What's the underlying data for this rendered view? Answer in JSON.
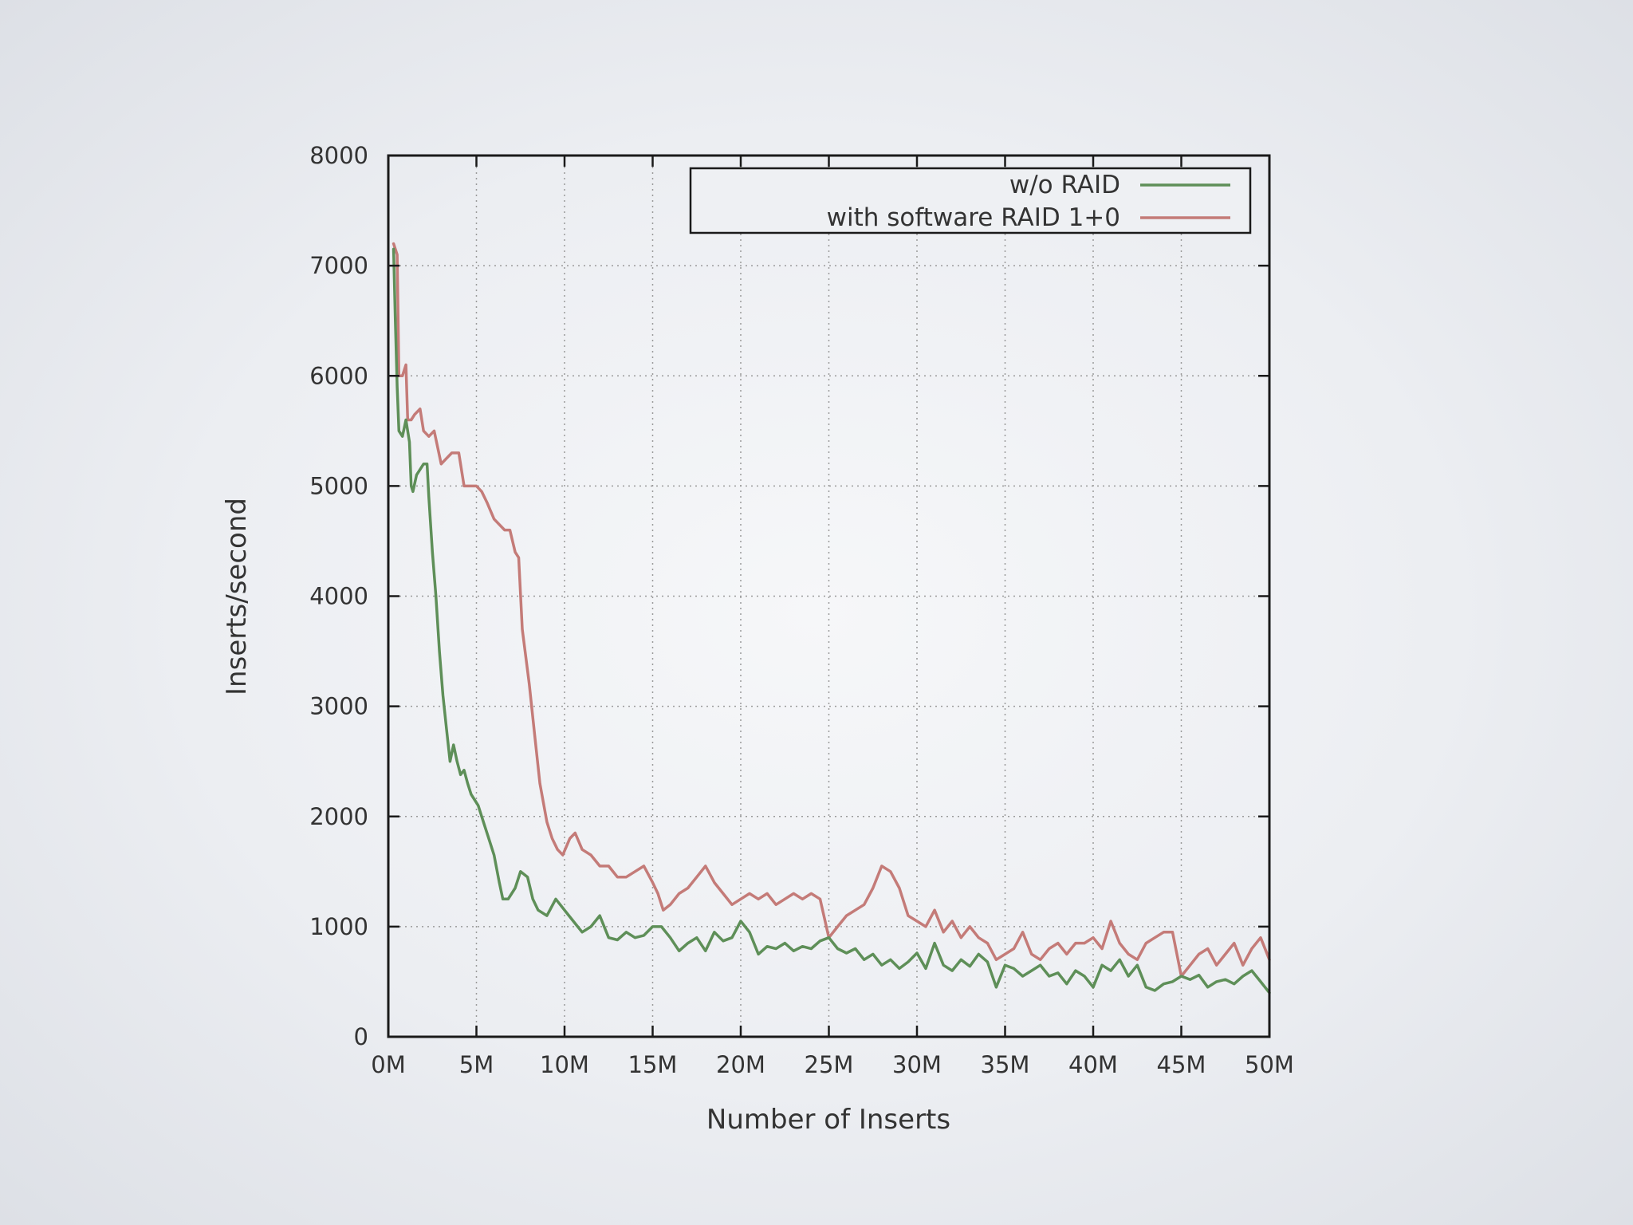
{
  "chart_data": {
    "type": "line",
    "xlabel": "Number of Inserts",
    "ylabel": "Inserts/second",
    "xlim": [
      0,
      50
    ],
    "ylim": [
      0,
      8000
    ],
    "x_ticks": [
      {
        "value": 0,
        "label": "0M"
      },
      {
        "value": 5,
        "label": "5M"
      },
      {
        "value": 10,
        "label": "10M"
      },
      {
        "value": 15,
        "label": "15M"
      },
      {
        "value": 20,
        "label": "20M"
      },
      {
        "value": 25,
        "label": "25M"
      },
      {
        "value": 30,
        "label": "30M"
      },
      {
        "value": 35,
        "label": "35M"
      },
      {
        "value": 40,
        "label": "40M"
      },
      {
        "value": 45,
        "label": "45M"
      },
      {
        "value": 50,
        "label": "50M"
      }
    ],
    "y_ticks": [
      {
        "value": 0,
        "label": "0"
      },
      {
        "value": 1000,
        "label": "1000"
      },
      {
        "value": 2000,
        "label": "2000"
      },
      {
        "value": 3000,
        "label": "3000"
      },
      {
        "value": 4000,
        "label": "4000"
      },
      {
        "value": 5000,
        "label": "5000"
      },
      {
        "value": 6000,
        "label": "6000"
      },
      {
        "value": 7000,
        "label": "7000"
      },
      {
        "value": 8000,
        "label": "8000"
      }
    ],
    "grid": true,
    "legend_position": "top-right",
    "series": [
      {
        "name": "w/o RAID",
        "color": "#5e8f58",
        "points": [
          [
            0.3,
            7150
          ],
          [
            0.4,
            6500
          ],
          [
            0.5,
            5900
          ],
          [
            0.6,
            5500
          ],
          [
            0.8,
            5450
          ],
          [
            1.0,
            5600
          ],
          [
            1.2,
            5400
          ],
          [
            1.3,
            5000
          ],
          [
            1.4,
            4950
          ],
          [
            1.6,
            5100
          ],
          [
            1.8,
            5150
          ],
          [
            2.0,
            5200
          ],
          [
            2.2,
            5200
          ],
          [
            2.3,
            4900
          ],
          [
            2.5,
            4400
          ],
          [
            2.7,
            4000
          ],
          [
            2.9,
            3500
          ],
          [
            3.1,
            3100
          ],
          [
            3.3,
            2800
          ],
          [
            3.5,
            2500
          ],
          [
            3.7,
            2650
          ],
          [
            3.9,
            2500
          ],
          [
            4.1,
            2380
          ],
          [
            4.3,
            2420
          ],
          [
            4.5,
            2300
          ],
          [
            4.7,
            2200
          ],
          [
            4.9,
            2150
          ],
          [
            5.1,
            2100
          ],
          [
            5.4,
            1950
          ],
          [
            5.7,
            1800
          ],
          [
            6.0,
            1650
          ],
          [
            6.3,
            1400
          ],
          [
            6.5,
            1250
          ],
          [
            6.8,
            1250
          ],
          [
            7.2,
            1350
          ],
          [
            7.5,
            1500
          ],
          [
            7.9,
            1450
          ],
          [
            8.2,
            1250
          ],
          [
            8.5,
            1150
          ],
          [
            9.0,
            1100
          ],
          [
            9.5,
            1250
          ],
          [
            10.0,
            1150
          ],
          [
            10.5,
            1050
          ],
          [
            11.0,
            950
          ],
          [
            11.5,
            1000
          ],
          [
            12.0,
            1100
          ],
          [
            12.5,
            900
          ],
          [
            13.0,
            880
          ],
          [
            13.5,
            950
          ],
          [
            14.0,
            900
          ],
          [
            14.5,
            920
          ],
          [
            15.0,
            1000
          ],
          [
            15.5,
            1000
          ],
          [
            16.0,
            900
          ],
          [
            16.5,
            780
          ],
          [
            17.0,
            850
          ],
          [
            17.5,
            900
          ],
          [
            18.0,
            780
          ],
          [
            18.5,
            950
          ],
          [
            19.0,
            870
          ],
          [
            19.5,
            900
          ],
          [
            20.0,
            1050
          ],
          [
            20.5,
            950
          ],
          [
            21.0,
            750
          ],
          [
            21.5,
            820
          ],
          [
            22.0,
            800
          ],
          [
            22.5,
            850
          ],
          [
            23.0,
            780
          ],
          [
            23.5,
            820
          ],
          [
            24.0,
            800
          ],
          [
            24.5,
            870
          ],
          [
            25.0,
            900
          ],
          [
            25.5,
            800
          ],
          [
            26.0,
            760
          ],
          [
            26.5,
            800
          ],
          [
            27.0,
            700
          ],
          [
            27.5,
            750
          ],
          [
            28.0,
            650
          ],
          [
            28.5,
            700
          ],
          [
            29.0,
            620
          ],
          [
            29.5,
            680
          ],
          [
            30.0,
            760
          ],
          [
            30.5,
            620
          ],
          [
            31.0,
            850
          ],
          [
            31.5,
            650
          ],
          [
            32.0,
            600
          ],
          [
            32.5,
            700
          ],
          [
            33.0,
            640
          ],
          [
            33.5,
            750
          ],
          [
            34.0,
            680
          ],
          [
            34.5,
            450
          ],
          [
            35.0,
            650
          ],
          [
            35.5,
            620
          ],
          [
            36.0,
            550
          ],
          [
            36.5,
            600
          ],
          [
            37.0,
            650
          ],
          [
            37.5,
            550
          ],
          [
            38.0,
            580
          ],
          [
            38.5,
            480
          ],
          [
            39.0,
            600
          ],
          [
            39.5,
            550
          ],
          [
            40.0,
            450
          ],
          [
            40.5,
            650
          ],
          [
            41.0,
            600
          ],
          [
            41.5,
            700
          ],
          [
            42.0,
            550
          ],
          [
            42.5,
            650
          ],
          [
            43.0,
            450
          ],
          [
            43.5,
            420
          ],
          [
            44.0,
            480
          ],
          [
            44.5,
            500
          ],
          [
            45.0,
            550
          ],
          [
            45.5,
            520
          ],
          [
            46.0,
            560
          ],
          [
            46.5,
            450
          ],
          [
            47.0,
            500
          ],
          [
            47.5,
            520
          ],
          [
            48.0,
            480
          ],
          [
            48.5,
            550
          ],
          [
            49.0,
            600
          ],
          [
            49.5,
            500
          ],
          [
            50.0,
            400
          ]
        ]
      },
      {
        "name": "with software RAID 1+0",
        "color": "#c47b78",
        "points": [
          [
            0.3,
            7200
          ],
          [
            0.5,
            7100
          ],
          [
            0.6,
            6000
          ],
          [
            0.8,
            6000
          ],
          [
            1.0,
            6100
          ],
          [
            1.1,
            5600
          ],
          [
            1.3,
            5600
          ],
          [
            1.5,
            5650
          ],
          [
            1.8,
            5700
          ],
          [
            2.0,
            5500
          ],
          [
            2.3,
            5450
          ],
          [
            2.6,
            5500
          ],
          [
            3.0,
            5200
          ],
          [
            3.3,
            5250
          ],
          [
            3.6,
            5300
          ],
          [
            4.0,
            5300
          ],
          [
            4.3,
            5000
          ],
          [
            4.6,
            5000
          ],
          [
            5.0,
            5000
          ],
          [
            5.3,
            4950
          ],
          [
            5.6,
            4850
          ],
          [
            6.0,
            4700
          ],
          [
            6.3,
            4650
          ],
          [
            6.6,
            4600
          ],
          [
            6.9,
            4600
          ],
          [
            7.2,
            4400
          ],
          [
            7.4,
            4350
          ],
          [
            7.6,
            3700
          ],
          [
            8.0,
            3200
          ],
          [
            8.3,
            2750
          ],
          [
            8.6,
            2300
          ],
          [
            9.0,
            1950
          ],
          [
            9.3,
            1800
          ],
          [
            9.6,
            1700
          ],
          [
            9.9,
            1650
          ],
          [
            10.3,
            1800
          ],
          [
            10.6,
            1850
          ],
          [
            11.0,
            1700
          ],
          [
            11.5,
            1650
          ],
          [
            12.0,
            1550
          ],
          [
            12.5,
            1550
          ],
          [
            13.0,
            1450
          ],
          [
            13.5,
            1450
          ],
          [
            14.0,
            1500
          ],
          [
            14.5,
            1550
          ],
          [
            15.0,
            1400
          ],
          [
            15.3,
            1300
          ],
          [
            15.6,
            1150
          ],
          [
            16.0,
            1200
          ],
          [
            16.5,
            1300
          ],
          [
            17.0,
            1350
          ],
          [
            17.5,
            1450
          ],
          [
            18.0,
            1550
          ],
          [
            18.5,
            1400
          ],
          [
            19.0,
            1300
          ],
          [
            19.5,
            1200
          ],
          [
            20.0,
            1250
          ],
          [
            20.5,
            1300
          ],
          [
            21.0,
            1250
          ],
          [
            21.5,
            1300
          ],
          [
            22.0,
            1200
          ],
          [
            22.5,
            1250
          ],
          [
            23.0,
            1300
          ],
          [
            23.5,
            1250
          ],
          [
            24.0,
            1300
          ],
          [
            24.5,
            1250
          ],
          [
            25.0,
            900
          ],
          [
            25.5,
            1000
          ],
          [
            26.0,
            1100
          ],
          [
            26.5,
            1150
          ],
          [
            27.0,
            1200
          ],
          [
            27.5,
            1350
          ],
          [
            28.0,
            1550
          ],
          [
            28.5,
            1500
          ],
          [
            29.0,
            1350
          ],
          [
            29.5,
            1100
          ],
          [
            30.0,
            1050
          ],
          [
            30.5,
            1000
          ],
          [
            31.0,
            1150
          ],
          [
            31.5,
            950
          ],
          [
            32.0,
            1050
          ],
          [
            32.5,
            900
          ],
          [
            33.0,
            1000
          ],
          [
            33.5,
            900
          ],
          [
            34.0,
            850
          ],
          [
            34.5,
            700
          ],
          [
            35.0,
            750
          ],
          [
            35.5,
            800
          ],
          [
            36.0,
            950
          ],
          [
            36.5,
            750
          ],
          [
            37.0,
            700
          ],
          [
            37.5,
            800
          ],
          [
            38.0,
            850
          ],
          [
            38.5,
            750
          ],
          [
            39.0,
            850
          ],
          [
            39.5,
            850
          ],
          [
            40.0,
            900
          ],
          [
            40.5,
            800
          ],
          [
            41.0,
            1050
          ],
          [
            41.5,
            850
          ],
          [
            42.0,
            750
          ],
          [
            42.5,
            700
          ],
          [
            43.0,
            850
          ],
          [
            43.5,
            900
          ],
          [
            44.0,
            950
          ],
          [
            44.5,
            950
          ],
          [
            45.0,
            550
          ],
          [
            45.5,
            650
          ],
          [
            46.0,
            750
          ],
          [
            46.5,
            800
          ],
          [
            47.0,
            650
          ],
          [
            47.5,
            750
          ],
          [
            48.0,
            850
          ],
          [
            48.5,
            650
          ],
          [
            49.0,
            800
          ],
          [
            49.5,
            900
          ],
          [
            50.0,
            700
          ]
        ]
      }
    ]
  }
}
